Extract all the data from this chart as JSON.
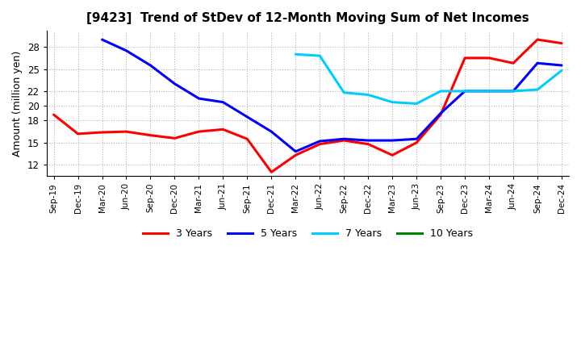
{
  "title": "[9423]  Trend of StDev of 12-Month Moving Sum of Net Incomes",
  "ylabel": "Amount (million yen)",
  "x_labels": [
    "Sep-19",
    "Dec-19",
    "Mar-20",
    "Jun-20",
    "Sep-20",
    "Dec-20",
    "Mar-21",
    "Jun-21",
    "Sep-21",
    "Dec-21",
    "Mar-22",
    "Jun-22",
    "Sep-22",
    "Dec-22",
    "Mar-23",
    "Jun-23",
    "Sep-23",
    "Dec-23",
    "Mar-24",
    "Jun-24",
    "Sep-24",
    "Dec-24"
  ],
  "ylim": [
    10.5,
    30.2
  ],
  "yticks": [
    12,
    15,
    18,
    20,
    22,
    25,
    28
  ],
  "series": {
    "3 Years": {
      "color": "#ff0000",
      "data": [
        18.8,
        16.2,
        16.4,
        16.5,
        16.0,
        15.6,
        16.5,
        16.8,
        15.5,
        11.0,
        13.3,
        14.8,
        15.3,
        14.8,
        13.3,
        15.0,
        18.8,
        26.5,
        26.5,
        25.8,
        29.0,
        28.5
      ]
    },
    "5 Years": {
      "color": "#0000ff",
      "data": [
        null,
        null,
        29.0,
        27.5,
        25.5,
        23.0,
        21.0,
        20.5,
        18.5,
        16.5,
        13.8,
        15.2,
        15.5,
        15.3,
        15.3,
        15.5,
        19.0,
        22.0,
        22.0,
        22.0,
        25.8,
        25.5
      ]
    },
    "7 Years": {
      "color": "#00ccff",
      "data": [
        null,
        null,
        null,
        null,
        null,
        null,
        null,
        null,
        null,
        null,
        27.0,
        26.8,
        21.8,
        21.5,
        20.5,
        20.3,
        22.0,
        22.0,
        22.0,
        22.0,
        22.2,
        24.8
      ]
    },
    "10 Years": {
      "color": "#008000",
      "data": [
        null,
        null,
        null,
        null,
        null,
        null,
        null,
        null,
        null,
        null,
        null,
        null,
        null,
        null,
        null,
        null,
        null,
        null,
        null,
        null,
        null,
        null
      ]
    }
  },
  "legend_labels": [
    "3 Years",
    "5 Years",
    "7 Years",
    "10 Years"
  ],
  "legend_colors": [
    "#ff0000",
    "#0000ff",
    "#00ccff",
    "#008000"
  ],
  "background_color": "#ffffff",
  "grid_color": "#aaaaaa",
  "figsize": [
    7.2,
    4.4
  ],
  "dpi": 100
}
